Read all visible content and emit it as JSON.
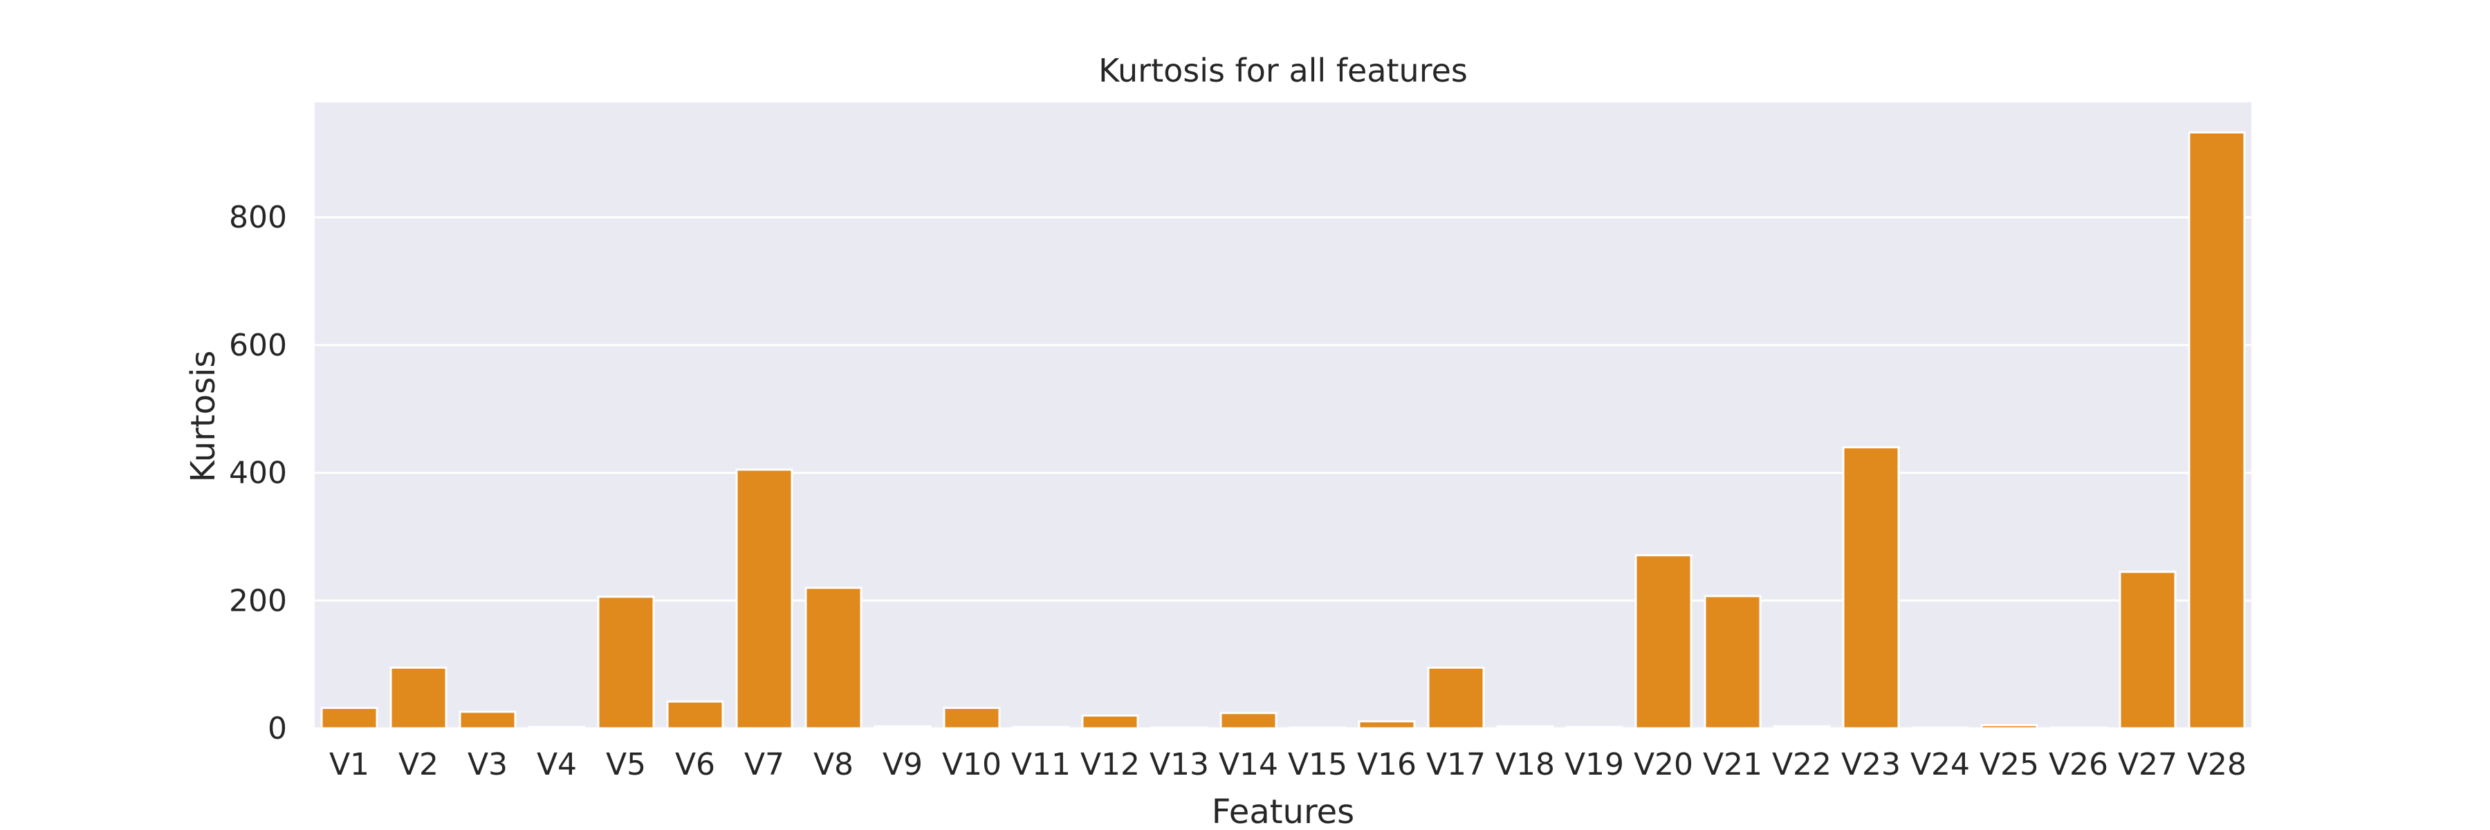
{
  "chart_data": {
    "type": "bar",
    "title": "Kurtosis for all features",
    "xlabel": "Features",
    "ylabel": "Kurtosis",
    "categories": [
      "V1",
      "V2",
      "V3",
      "V4",
      "V5",
      "V6",
      "V7",
      "V8",
      "V9",
      "V10",
      "V11",
      "V12",
      "V13",
      "V14",
      "V15",
      "V16",
      "V17",
      "V18",
      "V19",
      "V20",
      "V21",
      "V22",
      "V23",
      "V24",
      "V25",
      "V26",
      "V27",
      "V28"
    ],
    "values": [
      32,
      95,
      26,
      2,
      206,
      42,
      405,
      220,
      3,
      32,
      2,
      20,
      1,
      24,
      1,
      11,
      95,
      3,
      2,
      271,
      207,
      3,
      440,
      1,
      5,
      1,
      245,
      933
    ],
    "ylim": [
      0,
      980
    ],
    "yticks": [
      0,
      200,
      400,
      600,
      800
    ],
    "grid": true,
    "colors": {
      "bar": "#e08a1e",
      "plot_background": "#eaeaf2",
      "grid": "#ffffff"
    }
  }
}
